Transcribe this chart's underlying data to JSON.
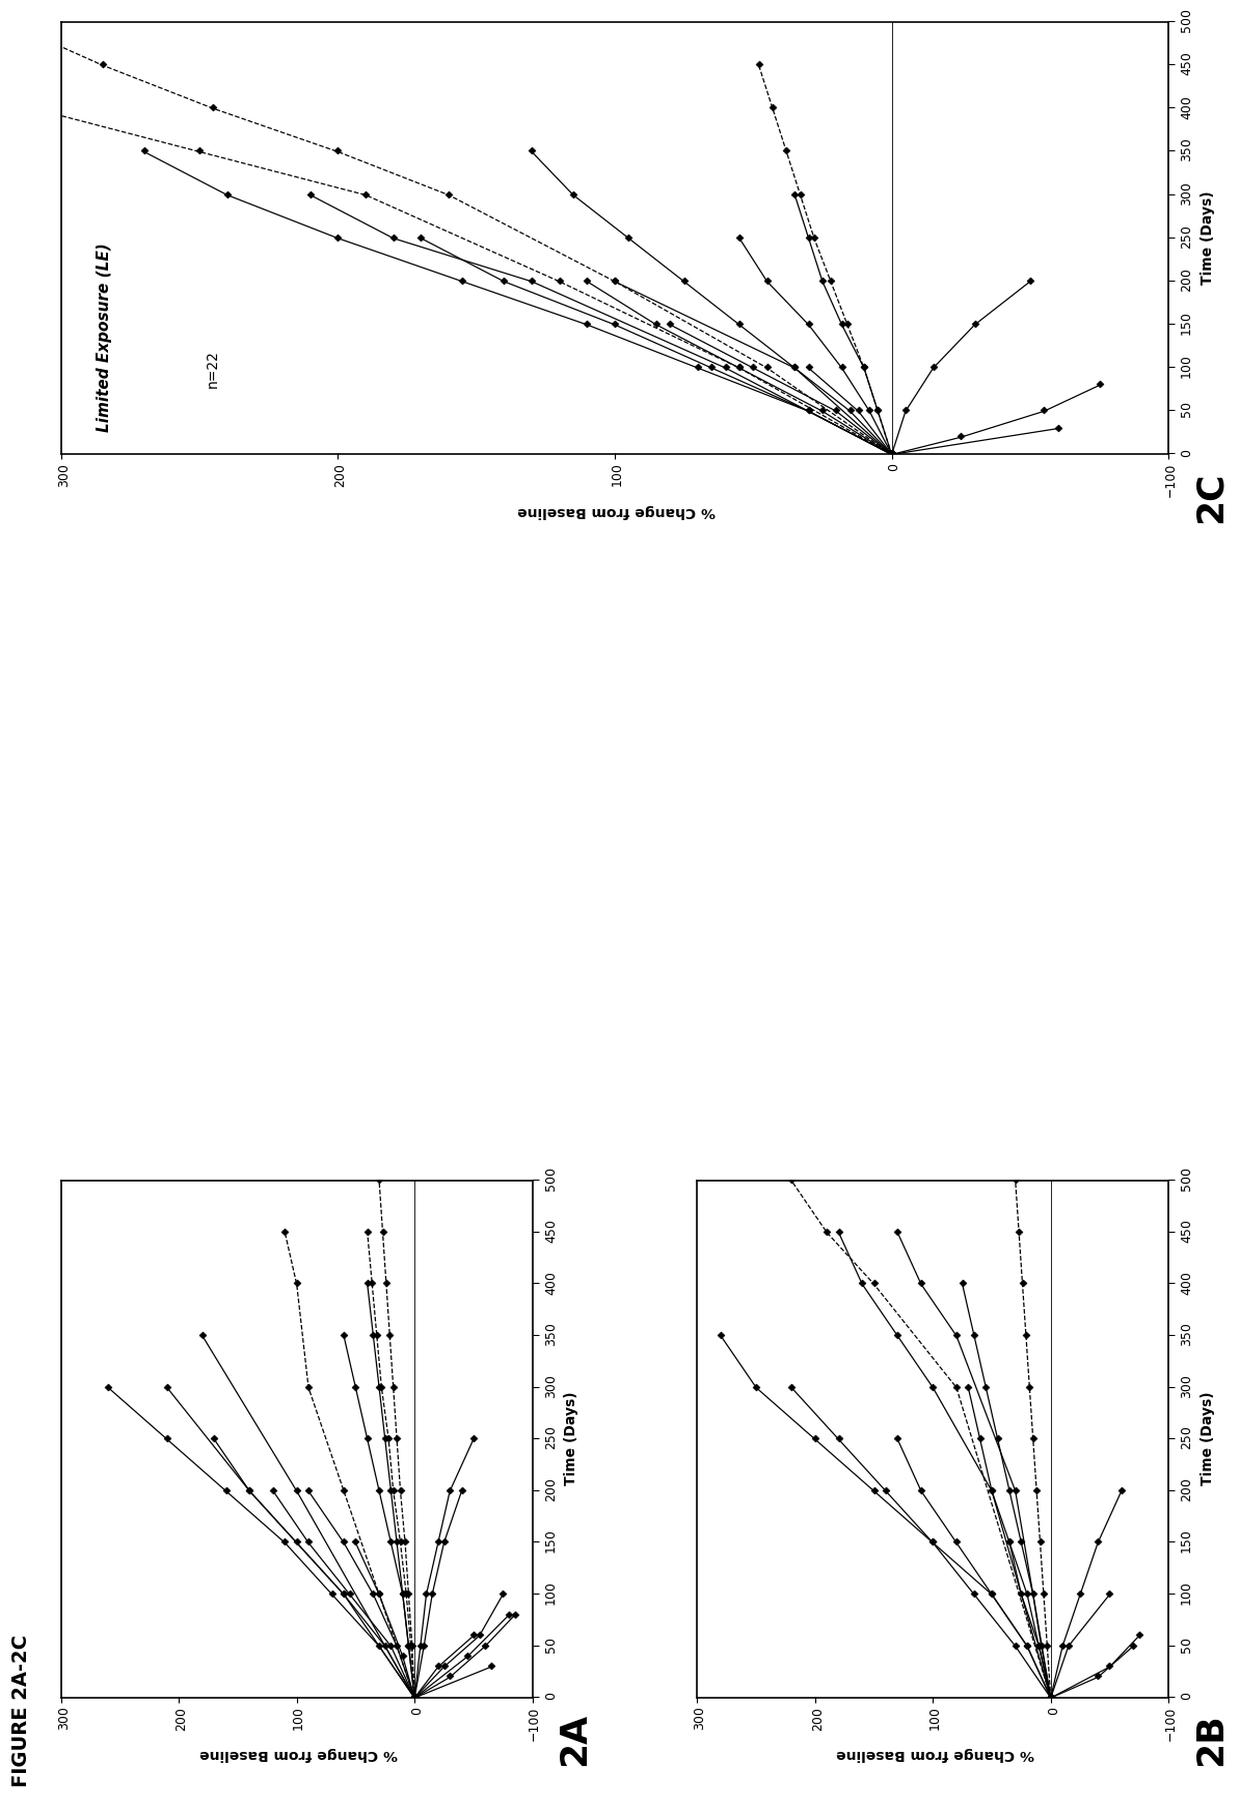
{
  "figure_title": "FIGURE 2A-2C",
  "xlabel": "Time (Days)",
  "ylabel": "% Change from Baseline",
  "xlim": [
    0,
    500
  ],
  "ylim": [
    -100,
    300
  ],
  "xticks": [
    0,
    50,
    100,
    150,
    200,
    250,
    300,
    350,
    400,
    450,
    500
  ],
  "yticks": [
    -100,
    0,
    100,
    200,
    300
  ],
  "panel_A_series": [
    {
      "x": [
        0,
        30
      ],
      "y": [
        0,
        -65
      ]
    },
    {
      "x": [
        0,
        40,
        80
      ],
      "y": [
        0,
        -45,
        -80
      ]
    },
    {
      "x": [
        0,
        20,
        50,
        80
      ],
      "y": [
        0,
        -30,
        -60,
        -85
      ]
    },
    {
      "x": [
        0,
        30,
        60
      ],
      "y": [
        0,
        -20,
        -50
      ]
    },
    {
      "x": [
        0,
        40,
        100,
        150
      ],
      "y": [
        0,
        10,
        30,
        50
      ]
    },
    {
      "x": [
        0,
        50,
        100,
        150,
        200
      ],
      "y": [
        0,
        15,
        35,
        60,
        90
      ]
    },
    {
      "x": [
        0,
        50,
        100,
        150,
        200
      ],
      "y": [
        0,
        20,
        55,
        90,
        120
      ]
    },
    {
      "x": [
        0,
        50,
        100,
        150,
        200,
        250
      ],
      "y": [
        0,
        25,
        60,
        100,
        140,
        170
      ]
    },
    {
      "x": [
        0,
        50,
        100,
        150,
        200,
        250,
        300
      ],
      "y": [
        0,
        30,
        70,
        110,
        160,
        210,
        260
      ]
    },
    {
      "x": [
        0,
        100,
        200,
        300
      ],
      "y": [
        0,
        60,
        140,
        210
      ]
    },
    {
      "x": [
        0,
        200,
        350
      ],
      "y": [
        0,
        100,
        180
      ]
    },
    {
      "x": [
        0,
        50,
        100,
        150,
        200,
        250
      ],
      "y": [
        0,
        -5,
        -10,
        -20,
        -30,
        -50
      ]
    },
    {
      "x": [
        0,
        50,
        100,
        150,
        200,
        250,
        300,
        350
      ],
      "y": [
        0,
        5,
        10,
        20,
        30,
        40,
        50,
        60
      ]
    },
    {
      "x": [
        0,
        50,
        100,
        150,
        200,
        250,
        300,
        350,
        400
      ],
      "y": [
        0,
        5,
        10,
        15,
        20,
        25,
        30,
        35,
        40
      ]
    },
    {
      "x": [
        0,
        50,
        100,
        150,
        200,
        250,
        300,
        350,
        400,
        450
      ],
      "y": [
        0,
        3,
        7,
        12,
        18,
        22,
        28,
        32,
        36,
        40
      ],
      "dashed": true
    },
    {
      "x": [
        0,
        50,
        100,
        150,
        200,
        250,
        300,
        350,
        400,
        450,
        500
      ],
      "y": [
        0,
        2,
        5,
        8,
        12,
        15,
        18,
        21,
        24,
        27,
        30
      ],
      "dashed": true
    },
    {
      "x": [
        0,
        100,
        200,
        300,
        400,
        450
      ],
      "y": [
        0,
        30,
        60,
        90,
        100,
        110
      ],
      "dashed": true
    },
    {
      "x": [
        0,
        50,
        100,
        150,
        200
      ],
      "y": [
        0,
        -8,
        -15,
        -25,
        -40
      ]
    },
    {
      "x": [
        0,
        30,
        60,
        100
      ],
      "y": [
        0,
        -25,
        -55,
        -75
      ]
    }
  ],
  "panel_B_series": [
    {
      "x": [
        0,
        30,
        60
      ],
      "y": [
        0,
        -50,
        -75
      ]
    },
    {
      "x": [
        0,
        20,
        50
      ],
      "y": [
        0,
        -40,
        -70
      ]
    },
    {
      "x": [
        0,
        50,
        100,
        150,
        200,
        250
      ],
      "y": [
        0,
        20,
        50,
        80,
        110,
        130
      ]
    },
    {
      "x": [
        0,
        50,
        100,
        150,
        200,
        250,
        300
      ],
      "y": [
        0,
        30,
        65,
        100,
        140,
        180,
        220
      ]
    },
    {
      "x": [
        0,
        50,
        100,
        150,
        200,
        250,
        300,
        350
      ],
      "y": [
        0,
        20,
        50,
        100,
        150,
        200,
        250,
        280
      ]
    },
    {
      "x": [
        0,
        200,
        300,
        350,
        400,
        450
      ],
      "y": [
        0,
        50,
        100,
        130,
        160,
        180
      ]
    },
    {
      "x": [
        0,
        300,
        400,
        450,
        500
      ],
      "y": [
        0,
        80,
        150,
        190,
        220
      ],
      "dashed": true
    },
    {
      "x": [
        0,
        50,
        100
      ],
      "y": [
        0,
        -15,
        -50
      ]
    },
    {
      "x": [
        0,
        50,
        100,
        150,
        200
      ],
      "y": [
        0,
        -10,
        -25,
        -40,
        -60
      ]
    },
    {
      "x": [
        0,
        50,
        100,
        150,
        200,
        250,
        300
      ],
      "y": [
        0,
        10,
        20,
        35,
        50,
        60,
        70
      ]
    },
    {
      "x": [
        0,
        50,
        100,
        150,
        200,
        250,
        300,
        350,
        400
      ],
      "y": [
        0,
        8,
        15,
        25,
        35,
        45,
        55,
        65,
        75
      ]
    },
    {
      "x": [
        0,
        50,
        100,
        150,
        200,
        250,
        300,
        350,
        400,
        450,
        500
      ],
      "y": [
        0,
        3,
        6,
        9,
        12,
        15,
        18,
        21,
        24,
        27,
        30
      ],
      "dashed": true
    },
    {
      "x": [
        0,
        200,
        350,
        400,
        450
      ],
      "y": [
        0,
        30,
        80,
        110,
        130
      ]
    },
    {
      "x": [
        0,
        50,
        100,
        150
      ],
      "y": [
        0,
        10,
        25,
        35
      ]
    }
  ],
  "panel_C_series": [
    {
      "x": [
        0,
        30
      ],
      "y": [
        0,
        -60
      ]
    },
    {
      "x": [
        0,
        20,
        50,
        80
      ],
      "y": [
        0,
        -25,
        -55,
        -75
      ]
    },
    {
      "x": [
        0,
        50,
        100,
        150
      ],
      "y": [
        0,
        20,
        50,
        80
      ]
    },
    {
      "x": [
        0,
        50,
        100,
        150,
        200
      ],
      "y": [
        0,
        25,
        55,
        85,
        110
      ]
    },
    {
      "x": [
        0,
        50,
        100,
        150,
        200,
        250
      ],
      "y": [
        0,
        30,
        65,
        100,
        140,
        170
      ]
    },
    {
      "x": [
        0,
        100,
        200,
        250,
        300
      ],
      "y": [
        0,
        60,
        130,
        180,
        210
      ]
    },
    {
      "x": [
        0,
        50,
        100,
        150,
        200,
        250,
        300,
        350
      ],
      "y": [
        0,
        30,
        70,
        110,
        155,
        200,
        240,
        270
      ]
    },
    {
      "x": [
        0,
        100,
        200,
        300,
        350,
        400,
        450
      ],
      "y": [
        0,
        55,
        120,
        190,
        250,
        310,
        360
      ],
      "dashed": true
    },
    {
      "x": [
        0,
        100,
        200,
        300,
        350,
        400,
        450,
        500
      ],
      "y": [
        0,
        45,
        100,
        160,
        200,
        245,
        285,
        320
      ],
      "dashed": true
    },
    {
      "x": [
        0,
        50,
        100,
        150,
        200
      ],
      "y": [
        0,
        -5,
        -15,
        -30,
        -50
      ]
    },
    {
      "x": [
        0,
        50,
        100,
        150,
        200,
        250,
        300
      ],
      "y": [
        0,
        5,
        10,
        18,
        25,
        30,
        35
      ]
    },
    {
      "x": [
        0,
        50,
        100,
        150,
        200,
        250
      ],
      "y": [
        0,
        8,
        18,
        30,
        45,
        55
      ]
    },
    {
      "x": [
        0,
        100,
        200
      ],
      "y": [
        0,
        35,
        100
      ]
    },
    {
      "x": [
        0,
        50,
        100
      ],
      "y": [
        0,
        12,
        30
      ]
    },
    {
      "x": [
        0,
        50,
        100,
        150,
        200,
        250,
        300,
        350
      ],
      "y": [
        0,
        15,
        35,
        55,
        75,
        95,
        115,
        130
      ]
    },
    {
      "x": [
        0,
        50,
        100,
        150,
        200,
        250,
        300,
        350,
        400,
        450
      ],
      "y": [
        0,
        5,
        10,
        16,
        22,
        28,
        33,
        38,
        43,
        48
      ],
      "dashed": true
    }
  ]
}
